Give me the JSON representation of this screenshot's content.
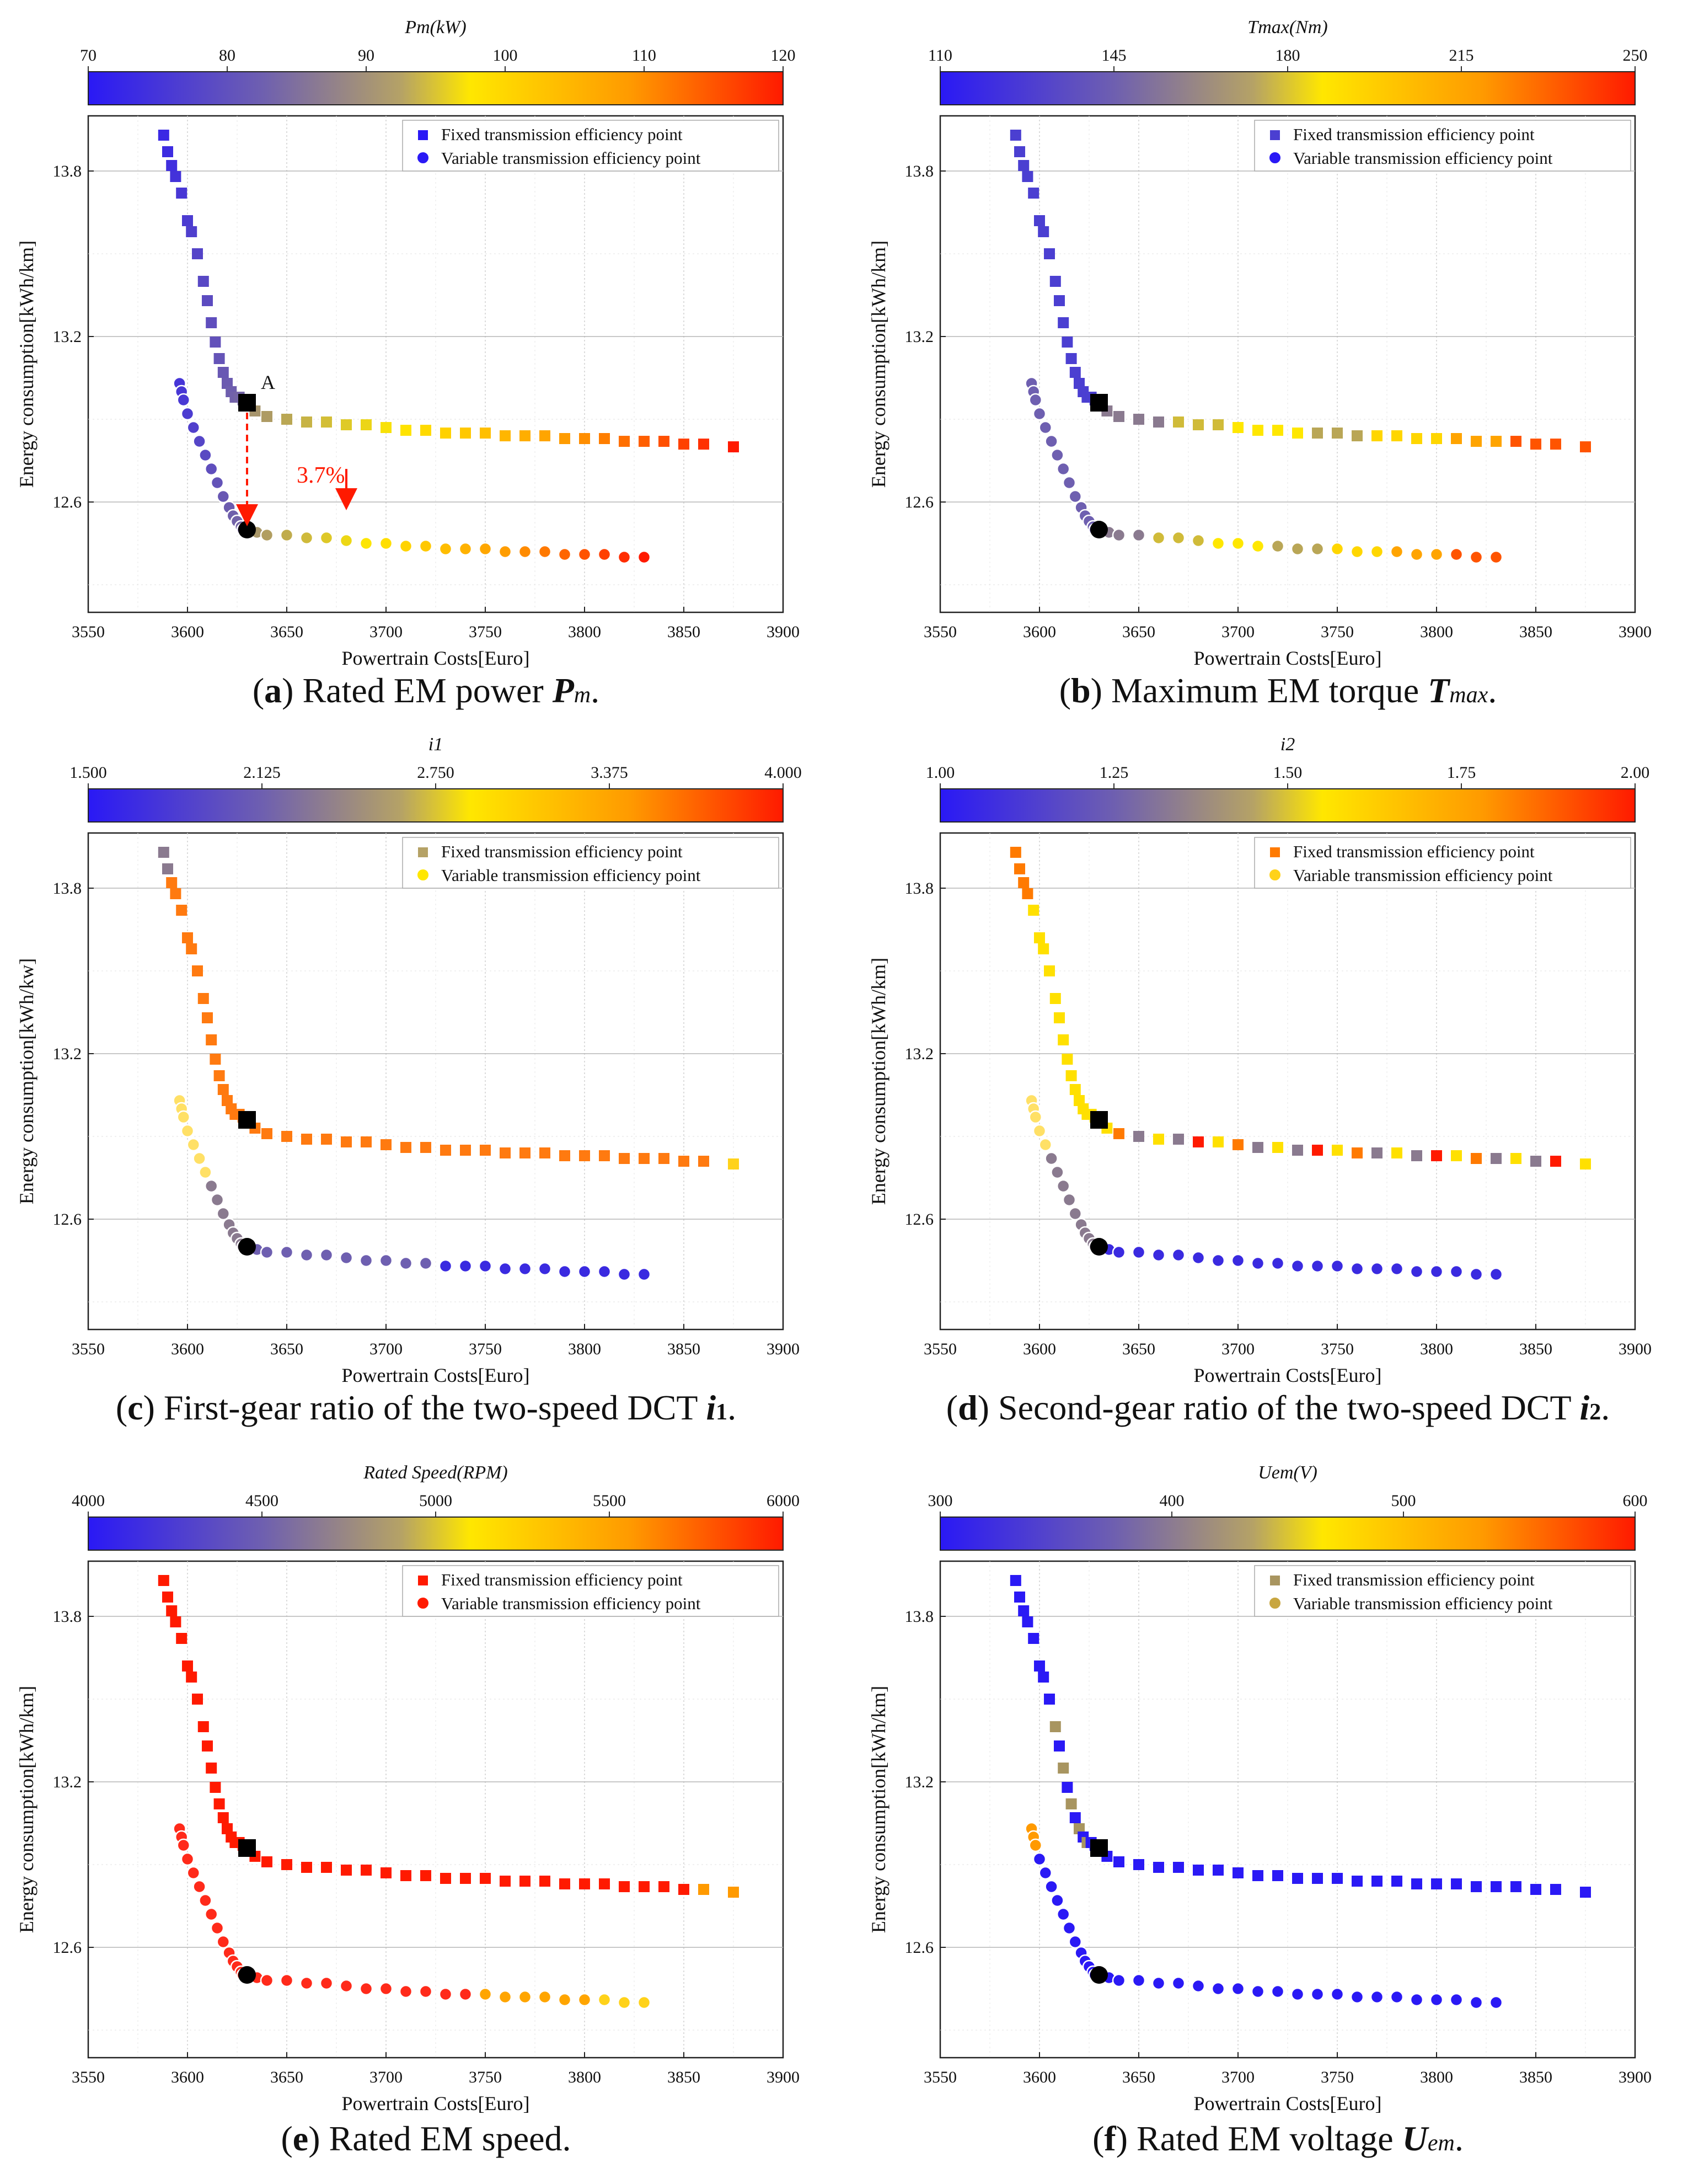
{
  "figure": {
    "palette": [
      "#2a19f5",
      "#8a7a8f",
      "#ffe700",
      "#ff9a00",
      "#ff1a00"
    ],
    "fixed_efficiency_curve": {
      "x": [
        3588,
        3590,
        3592,
        3594,
        3597,
        3600,
        3602,
        3605,
        3608,
        3610,
        3612,
        3614,
        3616,
        3618,
        3620,
        3622,
        3624,
        3626,
        3628,
        3630,
        3634,
        3640,
        3650,
        3660,
        3670,
        3680,
        3690,
        3700,
        3710,
        3720,
        3730,
        3740,
        3750,
        3760,
        3770,
        3780,
        3790,
        3800,
        3810,
        3820,
        3830,
        3840,
        3850,
        3860,
        3875
      ],
      "y": [
        13.93,
        13.87,
        13.82,
        13.78,
        13.72,
        13.62,
        13.58,
        13.5,
        13.4,
        13.33,
        13.25,
        13.18,
        13.12,
        13.07,
        13.03,
        13.0,
        12.98,
        12.98,
        12.97,
        12.96,
        12.93,
        12.91,
        12.9,
        12.89,
        12.89,
        12.88,
        12.88,
        12.87,
        12.86,
        12.86,
        12.85,
        12.85,
        12.85,
        12.84,
        12.84,
        12.84,
        12.83,
        12.83,
        12.83,
        12.82,
        12.82,
        12.82,
        12.81,
        12.81,
        12.8
      ]
    },
    "variable_efficiency_curve": {
      "x": [
        3596,
        3597,
        3598,
        3600,
        3603,
        3606,
        3609,
        3612,
        3615,
        3618,
        3621,
        3623,
        3625,
        3627,
        3628,
        3630,
        3635,
        3640,
        3650,
        3660,
        3670,
        3680,
        3690,
        3700,
        3710,
        3720,
        3730,
        3740,
        3750,
        3760,
        3770,
        3780,
        3790,
        3800,
        3810,
        3820,
        3830
      ],
      "y": [
        13.03,
        13.0,
        12.97,
        12.92,
        12.87,
        12.82,
        12.77,
        12.72,
        12.67,
        12.62,
        12.58,
        12.55,
        12.53,
        12.51,
        12.5,
        12.5,
        12.49,
        12.48,
        12.48,
        12.47,
        12.47,
        12.46,
        12.45,
        12.45,
        12.44,
        12.44,
        12.43,
        12.43,
        12.43,
        12.42,
        12.42,
        12.42,
        12.41,
        12.41,
        12.41,
        12.4,
        12.4
      ]
    }
  },
  "panels": [
    {
      "id": "a",
      "colorbar": {
        "title": "Pm(kW)",
        "ticks": [
          "70",
          "80",
          "90",
          "100",
          "110",
          "120"
        ]
      },
      "legend": {
        "fixed": "Fixed transmission efficiency point",
        "variable": "Variable transmission efficiency point",
        "fixed_color": "#2a19f5",
        "variable_color": "#2a19f5"
      },
      "axes": {
        "xlabel": "Powertrain Costs[Euro]",
        "ylabel": "Energy consumption[kWh/km]",
        "xticks": [
          "3550",
          "3600",
          "3650",
          "3700",
          "3750",
          "3800",
          "3850",
          "3900"
        ],
        "yticks": [
          "12.6",
          "13.2",
          "13.8"
        ]
      },
      "coloring": "gradient",
      "annotation": {
        "point_label": "A",
        "reduction": "3.7%"
      },
      "caption": {
        "letter": "a",
        "text": "Rated EM power ",
        "symbol": "P",
        "subscript": "m",
        "end": "."
      }
    },
    {
      "id": "b",
      "colorbar": {
        "title": "Tmax(Nm)",
        "ticks": [
          "110",
          "145",
          "180",
          "215",
          "250"
        ]
      },
      "legend": {
        "fixed": "Fixed transmission efficiency point",
        "variable": "Variable transmission efficiency point",
        "fixed_color": "#4b3fd1",
        "variable_color": "#2a19f5"
      },
      "axes": {
        "xlabel": "Powertrain Costs[Euro]",
        "ylabel": "Energy consumption[kWh/km]",
        "xticks": [
          "3550",
          "3600",
          "3650",
          "3700",
          "3750",
          "3800",
          "3850",
          "3900"
        ],
        "yticks": [
          "12.6",
          "13.2",
          "13.8"
        ]
      },
      "coloring": "gradient_mixed",
      "caption": {
        "letter": "b",
        "text": "Maximum EM torque ",
        "symbol": "T",
        "subscript": "max",
        "end": "."
      }
    },
    {
      "id": "c",
      "colorbar": {
        "title": "i1",
        "ticks": [
          "1.500",
          "2.125",
          "2.750",
          "3.375",
          "4.000"
        ]
      },
      "legend": {
        "fixed": "Fixed transmission efficiency point",
        "variable": "Variable transmission efficiency point",
        "fixed_color": "#b5a266",
        "variable_color": "#ffe700"
      },
      "axes": {
        "xlabel": "Powertrain Costs[Euro]",
        "ylabel": "Energy consumption[kWh/kw]",
        "xticks": [
          "3550",
          "3600",
          "3650",
          "3700",
          "3750",
          "3800",
          "3850",
          "3900"
        ],
        "yticks": [
          "12.6",
          "13.2",
          "13.8"
        ]
      },
      "coloring": "orange_blue",
      "caption": {
        "letter": "c",
        "text": "First-gear ratio of the two-speed DCT ",
        "symbol": "i",
        "subscript": "1",
        "end": "."
      }
    },
    {
      "id": "d",
      "colorbar": {
        "title": "i2",
        "ticks": [
          "1.00",
          "1.25",
          "1.50",
          "1.75",
          "2.00"
        ]
      },
      "legend": {
        "fixed": "Fixed transmission efficiency point",
        "variable": "Variable transmission efficiency point",
        "fixed_color": "#ff7a00",
        "variable_color": "#ffd21a"
      },
      "axes": {
        "xlabel": "Powertrain Costs[Euro]",
        "ylabel": "Energy consumption[kWh/km]",
        "xticks": [
          "3550",
          "3600",
          "3650",
          "3700",
          "3750",
          "3800",
          "3850",
          "3900"
        ],
        "yticks": [
          "12.6",
          "13.2",
          "13.8"
        ]
      },
      "coloring": "yellow_mixed",
      "caption": {
        "letter": "d",
        "text": "Second-gear ratio of the two-speed DCT ",
        "symbol": "i",
        "subscript": "2",
        "end": "."
      }
    },
    {
      "id": "e",
      "colorbar": {
        "title": "Rated Speed(RPM)",
        "ticks": [
          "4000",
          "4500",
          "5000",
          "5500",
          "6000"
        ]
      },
      "legend": {
        "fixed": "Fixed transmission efficiency point",
        "variable": "Variable transmission efficiency point",
        "fixed_color": "#ff1a00",
        "variable_color": "#ff1a00"
      },
      "axes": {
        "xlabel": "Powertrain Costs[Euro]",
        "ylabel": "Energy consumption[kWh/km]",
        "xticks": [
          "3550",
          "3600",
          "3650",
          "3700",
          "3750",
          "3800",
          "3850",
          "3900"
        ],
        "yticks": [
          "12.6",
          "13.2",
          "13.8"
        ]
      },
      "coloring": "red_tail",
      "caption": {
        "letter": "e",
        "text": "Rated EM speed.",
        "symbol": "",
        "subscript": "",
        "end": ""
      }
    },
    {
      "id": "f",
      "colorbar": {
        "title": "Uem(V)",
        "ticks": [
          "300",
          "400",
          "500",
          "600"
        ]
      },
      "legend": {
        "fixed": "Fixed transmission efficiency point",
        "variable": "Variable transmission efficiency point",
        "fixed_color": "#a89560",
        "variable_color": "#c8a640"
      },
      "axes": {
        "xlabel": "Powertrain Costs[Euro]",
        "ylabel": "Energy consumption[kWh/km]",
        "xticks": [
          "3550",
          "3600",
          "3650",
          "3700",
          "3750",
          "3800",
          "3850",
          "3900"
        ],
        "yticks": [
          "12.6",
          "13.2",
          "13.8"
        ]
      },
      "coloring": "blue_mixed",
      "caption": {
        "letter": "f",
        "text": "Rated EM voltage ",
        "symbol": "U",
        "subscript": "em",
        "end": "."
      }
    }
  ],
  "chart_data": [
    {
      "type": "scatter",
      "panel": "a",
      "title": "Rated EM power Pm.",
      "colorbar_label": "Pm(kW)",
      "colorbar_range": [
        70,
        120
      ],
      "xlabel": "Powertrain Costs[Euro]",
      "ylabel": "Energy consumption[kWh/km]",
      "xlim": [
        3550,
        3900
      ],
      "ylim": [
        12.2,
        14.0
      ],
      "series": [
        {
          "name": "Fixed transmission efficiency point",
          "source": "figure.fixed_efficiency_curve"
        },
        {
          "name": "Variable transmission efficiency point",
          "source": "figure.variable_efficiency_curve"
        }
      ],
      "annotations": [
        "A",
        "3.7%"
      ]
    },
    {
      "type": "scatter",
      "panel": "b",
      "title": "Maximum EM torque Tmax.",
      "colorbar_label": "Tmax(Nm)",
      "colorbar_range": [
        110,
        250
      ],
      "xlabel": "Powertrain Costs[Euro]",
      "ylabel": "Energy consumption[kWh/km]",
      "xlim": [
        3550,
        3900
      ],
      "ylim": [
        12.2,
        14.0
      ],
      "series": [
        {
          "name": "Fixed transmission efficiency point",
          "source": "figure.fixed_efficiency_curve"
        },
        {
          "name": "Variable transmission efficiency point",
          "source": "figure.variable_efficiency_curve"
        }
      ]
    },
    {
      "type": "scatter",
      "panel": "c",
      "title": "First-gear ratio of the two-speed DCT i1.",
      "colorbar_label": "i1",
      "colorbar_range": [
        1.5,
        4.0
      ],
      "xlabel": "Powertrain Costs[Euro]",
      "ylabel": "Energy consumption[kWh/kw]",
      "xlim": [
        3550,
        3900
      ],
      "ylim": [
        12.2,
        14.0
      ],
      "series": [
        {
          "name": "Fixed transmission efficiency point",
          "source": "figure.fixed_efficiency_curve"
        },
        {
          "name": "Variable transmission efficiency point",
          "source": "figure.variable_efficiency_curve"
        }
      ]
    },
    {
      "type": "scatter",
      "panel": "d",
      "title": "Second-gear ratio of the two-speed DCT i2.",
      "colorbar_label": "i2",
      "colorbar_range": [
        1.0,
        2.0
      ],
      "xlabel": "Powertrain Costs[Euro]",
      "ylabel": "Energy consumption[kWh/km]",
      "xlim": [
        3550,
        3900
      ],
      "ylim": [
        12.2,
        14.0
      ],
      "series": [
        {
          "name": "Fixed transmission efficiency point",
          "source": "figure.fixed_efficiency_curve"
        },
        {
          "name": "Variable transmission efficiency point",
          "source": "figure.variable_efficiency_curve"
        }
      ]
    },
    {
      "type": "scatter",
      "panel": "e",
      "title": "Rated EM speed.",
      "colorbar_label": "Rated Speed(RPM)",
      "colorbar_range": [
        4000,
        6000
      ],
      "xlabel": "Powertrain Costs[Euro]",
      "ylabel": "Energy consumption[kWh/km]",
      "xlim": [
        3550,
        3900
      ],
      "ylim": [
        12.2,
        14.0
      ],
      "series": [
        {
          "name": "Fixed transmission efficiency point",
          "source": "figure.fixed_efficiency_curve"
        },
        {
          "name": "Variable transmission efficiency point",
          "source": "figure.variable_efficiency_curve"
        }
      ]
    },
    {
      "type": "scatter",
      "panel": "f",
      "title": "Rated EM voltage Uem.",
      "colorbar_label": "Uem(V)",
      "colorbar_range": [
        300,
        600
      ],
      "xlabel": "Powertrain Costs[Euro]",
      "ylabel": "Energy consumption[kWh/km]",
      "xlim": [
        3550,
        3900
      ],
      "ylim": [
        12.2,
        14.0
      ],
      "series": [
        {
          "name": "Fixed transmission efficiency point",
          "source": "figure.fixed_efficiency_curve"
        },
        {
          "name": "Variable transmission efficiency point",
          "source": "figure.variable_efficiency_curve"
        }
      ]
    }
  ]
}
